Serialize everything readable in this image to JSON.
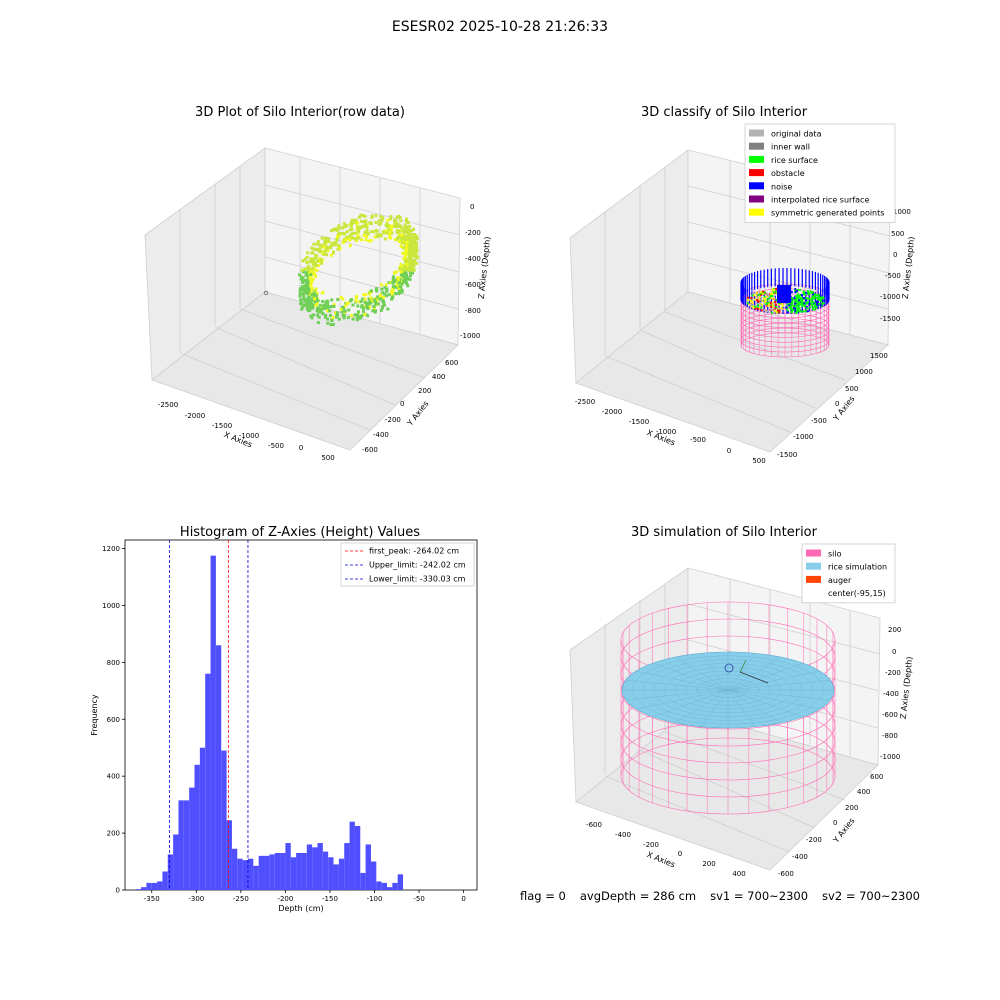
{
  "figure_title": "ESESR02 2025-10-28 21:26:33",
  "footer": {
    "flag": "flag = 0",
    "avg_depth": "avgDepth = 286 cm",
    "sv1": "sv1 = 700~2300",
    "sv2": "sv2 = 700~2300"
  },
  "colors": {
    "histogram_bar": "#4f4fff",
    "first_peak_line": "#ff0000",
    "limit_line": "#0000cc",
    "silo": "#ff69b4",
    "rice_simulation": "#87ceeb",
    "auger": "#ff4500",
    "raw_low": "#2ca25f",
    "raw_high": "#f0f921"
  },
  "panels": {
    "raw": {
      "title": "3D Plot of Silo Interior(row data)",
      "xlabel": "X Axies",
      "ylabel": "Y Axies",
      "zlabel": "Z Axies (Depth)",
      "x_ticks": [
        "-2500",
        "-2000",
        "-1500",
        "-1000",
        "-500",
        "0",
        "500"
      ],
      "y_ticks": [
        "-600",
        "-400",
        "-200",
        "0",
        "200",
        "400",
        "600"
      ],
      "z_ticks": [
        "0",
        "-200",
        "-400",
        "-600",
        "-800",
        "-1000"
      ]
    },
    "classify": {
      "title": "3D classify of Silo Interior",
      "xlabel": "X Axies",
      "ylabel": "Y Axies",
      "zlabel": "Z Axies (Depth)",
      "x_ticks": [
        "-2500",
        "-2000",
        "-1500",
        "-1000",
        "-500",
        "0",
        "500"
      ],
      "y_ticks": [
        "-1500",
        "-1000",
        "-500",
        "0",
        "500",
        "1000",
        "1500"
      ],
      "z_ticks": [
        "1000",
        "500",
        "0",
        "-500",
        "-1000",
        "-1500"
      ],
      "legend": [
        {
          "label": "original data",
          "color": "#b3b3b3"
        },
        {
          "label": "inner wall",
          "color": "#808080"
        },
        {
          "label": "rice surface",
          "color": "#00ff00"
        },
        {
          "label": "obstacle",
          "color": "#ff0000"
        },
        {
          "label": "noise",
          "color": "#0000ff"
        },
        {
          "label": "interpolated rice surface",
          "color": "#800080"
        },
        {
          "label": "symmetric generated points",
          "color": "#ffff00"
        }
      ]
    },
    "simulation": {
      "title": "3D simulation of Silo Interior",
      "xlabel": "X Axies",
      "ylabel": "Y Axies",
      "zlabel": "Z Axies (Depth)",
      "x_ticks": [
        "-600",
        "-400",
        "-200",
        "0",
        "200",
        "400"
      ],
      "y_ticks": [
        "-600",
        "-400",
        "-200",
        "0",
        "200",
        "400",
        "600"
      ],
      "z_ticks": [
        "200",
        "0",
        "-200",
        "-400",
        "-600",
        "-800",
        "-1000"
      ],
      "legend": [
        {
          "label": "silo",
          "color": "#ff69b4"
        },
        {
          "label": "rice simulation",
          "color": "#87ceeb"
        },
        {
          "label": "auger",
          "color": "#ff4500"
        },
        {
          "label": "center(-95,15)",
          "color": ""
        }
      ]
    }
  },
  "chart_data": {
    "type": "bar",
    "title": "Histogram of Z-Axies (Height) Values",
    "xlabel": "Depth (cm)",
    "ylabel": "Frequency",
    "xlim": [
      -380,
      15
    ],
    "ylim": [
      0,
      1230
    ],
    "x_ticks": [
      -350,
      -300,
      -250,
      -200,
      -150,
      -100,
      -50,
      0
    ],
    "y_ticks": [
      0,
      200,
      400,
      600,
      800,
      1000,
      1200
    ],
    "bin_width": 6,
    "bin_starts": [
      -368,
      -362,
      -356,
      -350,
      -344,
      -338,
      -332,
      -326,
      -320,
      -314,
      -308,
      -302,
      -296,
      -290,
      -284,
      -278,
      -272,
      -266,
      -260,
      -254,
      -248,
      -242,
      -236,
      -230,
      -224,
      -218,
      -212,
      -206,
      -200,
      -194,
      -188,
      -182,
      -176,
      -170,
      -164,
      -158,
      -152,
      -146,
      -140,
      -134,
      -128,
      -122,
      -116,
      -110,
      -104,
      -98,
      -92,
      -86,
      -80,
      -74,
      -68,
      -62,
      -56,
      -50,
      -44,
      -38,
      -32,
      -26,
      -20,
      -14,
      -8,
      -2
    ],
    "values": [
      3,
      10,
      25,
      25,
      30,
      65,
      125,
      195,
      315,
      315,
      360,
      440,
      500,
      760,
      1175,
      860,
      490,
      245,
      145,
      110,
      105,
      110,
      85,
      120,
      120,
      125,
      130,
      130,
      165,
      115,
      130,
      130,
      160,
      150,
      165,
      135,
      115,
      90,
      110,
      165,
      240,
      225,
      60,
      160,
      100,
      30,
      25,
      10,
      25,
      55,
      0,
      0,
      0,
      0,
      0,
      0,
      0,
      0,
      0,
      0,
      0,
      0
    ],
    "vlines": [
      {
        "label": "first_peak: -264.02 cm",
        "x": -264.02,
        "color": "#ff0000"
      },
      {
        "label": "Upper_limit: -242.02 cm",
        "x": -242.02,
        "color": "#0000cc"
      },
      {
        "label": "Lower_limit: -330.03 cm",
        "x": -330.03,
        "color": "#0000cc"
      }
    ],
    "legend_position": "top-right",
    "grid": false
  }
}
